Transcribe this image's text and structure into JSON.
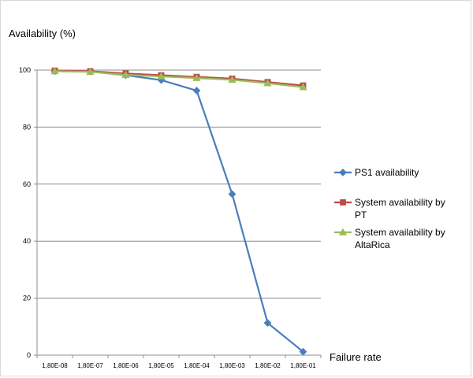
{
  "chart_data": {
    "type": "line",
    "title": "",
    "ylabel": "Availability (%)",
    "xlabel": "Failure rate",
    "categories": [
      "1,80E-08",
      "1,80E-07",
      "1,80E-06",
      "1,80E-05",
      "1,80E-04",
      "1,80E-03",
      "1,80E-02",
      "1,80E-01"
    ],
    "ylim": [
      0,
      100
    ],
    "yticks": [
      0,
      20,
      40,
      60,
      80,
      100
    ],
    "grid": true,
    "legend_position": "right",
    "series": [
      {
        "name": "PS1 availability",
        "legend_lines": [
          "PS1 availability"
        ],
        "color": "#4a7ebb",
        "marker": "diamond",
        "values": [
          99.6,
          99.5,
          98.2,
          96.5,
          92.8,
          56.5,
          11.3,
          1.2
        ]
      },
      {
        "name": "System availability by PT",
        "legend_lines": [
          "System availability by",
          "PT"
        ],
        "color": "#be4b48",
        "marker": "square",
        "values": [
          99.8,
          99.6,
          98.8,
          98.2,
          97.6,
          97.0,
          95.8,
          94.6
        ]
      },
      {
        "name": "System availability by AltaRica",
        "legend_lines": [
          "System availability by",
          "AltaRica"
        ],
        "color": "#9bbb59",
        "marker": "triangle",
        "values": [
          99.6,
          99.4,
          98.3,
          97.8,
          97.2,
          96.6,
          95.4,
          94.0
        ]
      }
    ]
  }
}
